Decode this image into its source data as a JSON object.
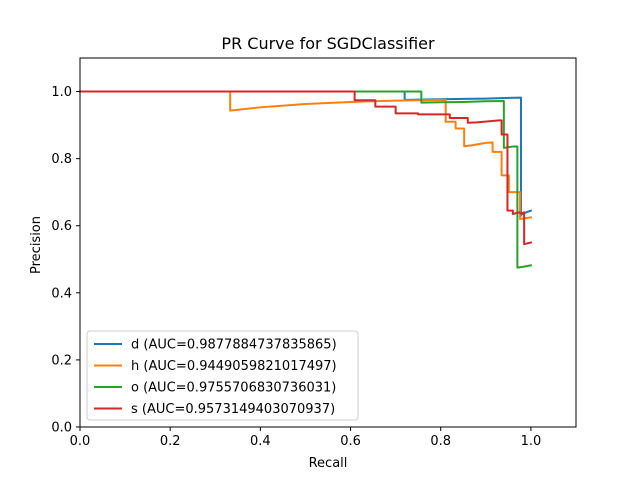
{
  "chart_data": {
    "type": "line",
    "title": "PR Curve for SGDClassifier",
    "xlabel": "Recall",
    "ylabel": "Precision",
    "xlim": [
      0.0,
      1.1
    ],
    "ylim": [
      0.0,
      1.1
    ],
    "xticks": [
      "0.0",
      "0.2",
      "0.4",
      "0.6",
      "0.8",
      "1.0"
    ],
    "yticks": [
      "0.0",
      "0.2",
      "0.4",
      "0.6",
      "0.8",
      "1.0"
    ],
    "grid": false,
    "legend_position": "lower-left",
    "series": [
      {
        "name": "d (AUC=0.9877884737835865)",
        "color": "#1f77b4",
        "x": [
          0.0,
          0.72,
          0.72,
          0.725,
          0.75,
          0.8,
          0.85,
          0.9,
          0.95,
          0.978,
          0.978,
          0.98,
          1.0
        ],
        "y": [
          1.0,
          1.0,
          0.976,
          0.975,
          0.976,
          0.977,
          0.978,
          0.979,
          0.981,
          0.982,
          0.63,
          0.635,
          0.645
        ]
      },
      {
        "name": "h (AUC=0.9449059821017497)",
        "color": "#ff7f0e",
        "x": [
          0.0,
          0.333,
          0.333,
          0.4,
          0.5,
          0.6,
          0.7,
          0.811,
          0.811,
          0.833,
          0.833,
          0.852,
          0.852,
          0.87,
          0.9,
          0.915,
          0.915,
          0.935,
          0.935,
          0.951,
          0.951,
          0.96,
          0.96,
          0.976,
          0.976,
          0.985,
          1.0
        ],
        "y": [
          1.0,
          1.0,
          0.943,
          0.953,
          0.963,
          0.969,
          0.973,
          0.975,
          0.91,
          0.91,
          0.89,
          0.89,
          0.837,
          0.84,
          0.847,
          0.848,
          0.82,
          0.82,
          0.75,
          0.75,
          0.7,
          0.7,
          0.7,
          0.7,
          0.62,
          0.622,
          0.625
        ]
      },
      {
        "name": "o (AUC=0.9755706830736031)",
        "color": "#2ca02c",
        "x": [
          0.0,
          0.757,
          0.757,
          0.8,
          0.85,
          0.9,
          0.94,
          0.94,
          0.96,
          0.96,
          0.97,
          0.97,
          0.985,
          1.0
        ],
        "y": [
          1.0,
          1.0,
          0.967,
          0.968,
          0.969,
          0.971,
          0.972,
          0.832,
          0.836,
          0.836,
          0.836,
          0.475,
          0.478,
          0.482
        ]
      },
      {
        "name": "s (AUC=0.9573149403070937)",
        "color": "#d62728",
        "x": [
          0.0,
          0.609,
          0.609,
          0.655,
          0.655,
          0.7,
          0.7,
          0.75,
          0.75,
          0.82,
          0.82,
          0.86,
          0.86,
          0.88,
          0.93,
          0.935,
          0.935,
          0.948,
          0.948,
          0.96,
          0.96,
          0.975,
          0.975,
          0.978,
          0.978,
          0.985,
          0.985,
          1.0
        ],
        "y": [
          1.0,
          1.0,
          0.974,
          0.974,
          0.955,
          0.955,
          0.935,
          0.935,
          0.932,
          0.932,
          0.921,
          0.921,
          0.907,
          0.908,
          0.914,
          0.914,
          0.872,
          0.872,
          0.645,
          0.645,
          0.635,
          0.64,
          0.64,
          0.636,
          0.636,
          0.64,
          0.545,
          0.55
        ]
      }
    ]
  }
}
